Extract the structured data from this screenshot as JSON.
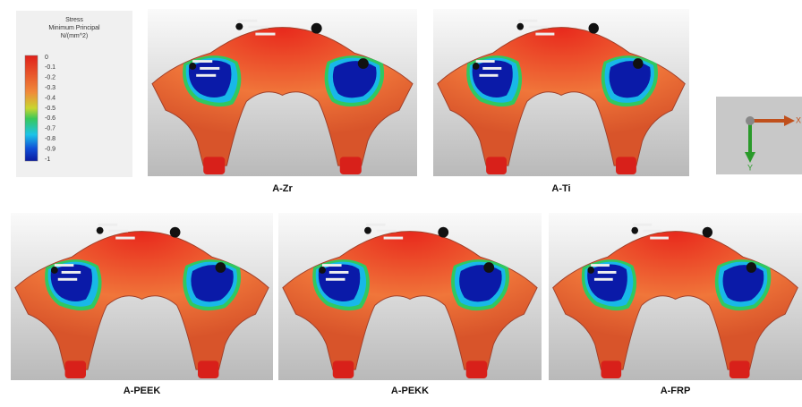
{
  "legend": {
    "title": [
      "Stress",
      "Minimum Principal",
      "N/(mm^2)"
    ],
    "ticks": [
      "0",
      "-0.1",
      "-0.2",
      "-0.3",
      "-0.4",
      "-0.5",
      "-0.6",
      "-0.7",
      "-0.8",
      "-0.9",
      "-1"
    ]
  },
  "panels": [
    {
      "label": "A-Zr"
    },
    {
      "label": "A-Ti"
    },
    {
      "label": "A-PEEK"
    },
    {
      "label": "A-PEKK"
    },
    {
      "label": "A-FRP"
    }
  ],
  "axes": {
    "x": "X",
    "y": "Y"
  }
}
